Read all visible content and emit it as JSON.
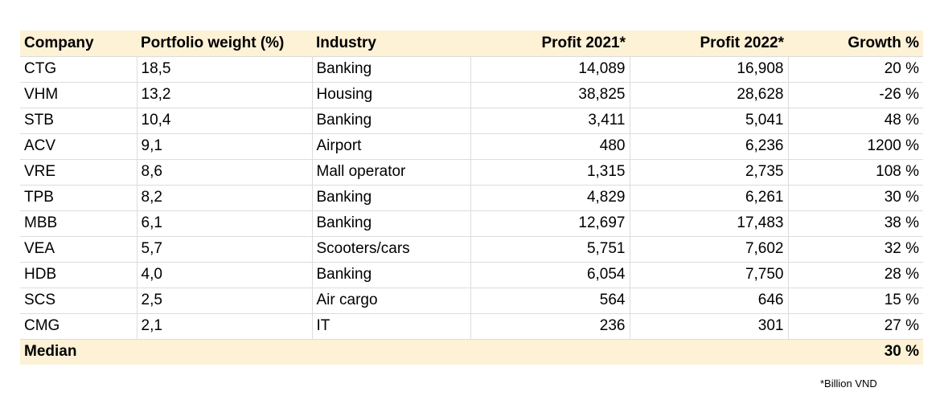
{
  "table": {
    "header": [
      "Company",
      "Portfolio weight (%)",
      "Industry",
      "Profit 2021*",
      "Profit 2022*",
      "Growth %"
    ],
    "rows": [
      [
        "CTG",
        "18,5",
        "Banking",
        "14,089",
        "16,908",
        "20 %"
      ],
      [
        "VHM",
        "13,2",
        "Housing",
        "38,825",
        "28,628",
        "-26 %"
      ],
      [
        "STB",
        "10,4",
        "Banking",
        "3,411",
        "5,041",
        "48 %"
      ],
      [
        "ACV",
        "9,1",
        "Airport",
        "480",
        "6,236",
        "1200 %"
      ],
      [
        "VRE",
        "8,6",
        "Mall operator",
        "1,315",
        "2,735",
        "108 %"
      ],
      [
        "TPB",
        "8,2",
        "Banking",
        "4,829",
        "6,261",
        "30 %"
      ],
      [
        "MBB",
        "6,1",
        "Banking",
        "12,697",
        "17,483",
        "38 %"
      ],
      [
        "VEA",
        "5,7",
        "Scooters/cars",
        "5,751",
        "7,602",
        "32 %"
      ],
      [
        "HDB",
        "4,0",
        "Banking",
        "6,054",
        "7,750",
        "28 %"
      ],
      [
        "SCS",
        "2,5",
        "Air cargo",
        "564",
        "646",
        "15 %"
      ],
      [
        "CMG",
        "2,1",
        "IT",
        "236",
        "301",
        "27 %"
      ]
    ],
    "footer": {
      "label": "Median",
      "growth": "30 %"
    }
  },
  "note": "*Billion VND"
}
